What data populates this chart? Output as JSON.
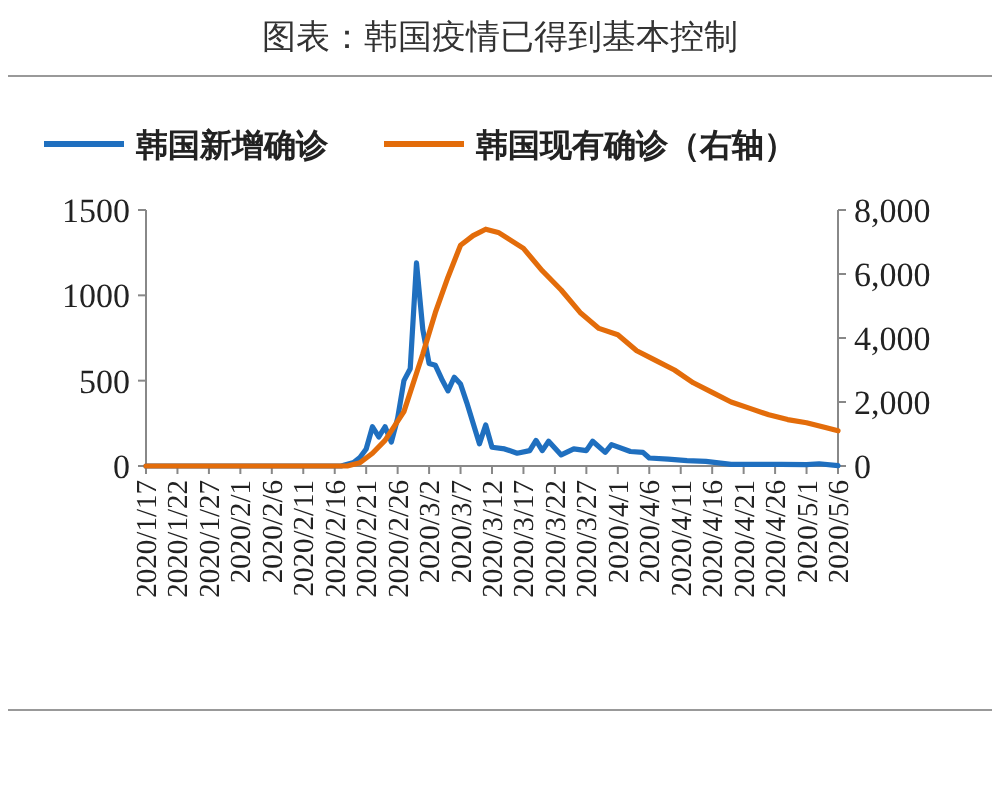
{
  "chart_data": {
    "type": "line",
    "title": "图表：韩国疫情已得到基本控制",
    "legend": "top",
    "xlim": [
      "2020-01-17",
      "2020-05-06"
    ],
    "xticks": [
      {
        "value": "2020-01-17",
        "label": "2020/1/17"
      },
      {
        "value": "2020-01-22",
        "label": "2020/1/22"
      },
      {
        "value": "2020-01-27",
        "label": "2020/1/27"
      },
      {
        "value": "2020-02-01",
        "label": "2020/2/1"
      },
      {
        "value": "2020-02-06",
        "label": "2020/2/6"
      },
      {
        "value": "2020-02-11",
        "label": "2020/2/11"
      },
      {
        "value": "2020-02-16",
        "label": "2020/2/16"
      },
      {
        "value": "2020-02-21",
        "label": "2020/2/21"
      },
      {
        "value": "2020-02-26",
        "label": "2020/2/26"
      },
      {
        "value": "2020-03-02",
        "label": "2020/3/2"
      },
      {
        "value": "2020-03-07",
        "label": "2020/3/7"
      },
      {
        "value": "2020-03-12",
        "label": "2020/3/12"
      },
      {
        "value": "2020-03-17",
        "label": "2020/3/17"
      },
      {
        "value": "2020-03-22",
        "label": "2020/3/22"
      },
      {
        "value": "2020-03-27",
        "label": "2020/3/27"
      },
      {
        "value": "2020-04-01",
        "label": "2020/4/1"
      },
      {
        "value": "2020-04-06",
        "label": "2020/4/6"
      },
      {
        "value": "2020-04-11",
        "label": "2020/4/11"
      },
      {
        "value": "2020-04-16",
        "label": "2020/4/16"
      },
      {
        "value": "2020-04-21",
        "label": "2020/4/21"
      },
      {
        "value": "2020-04-26",
        "label": "2020/4/26"
      },
      {
        "value": "2020-05-01",
        "label": "2020/5/1"
      },
      {
        "value": "2020-05-06",
        "label": "2020/5/6"
      }
    ],
    "ylim": [
      0,
      1500
    ],
    "yticks": [
      0,
      500,
      1000,
      1500
    ],
    "y2lim": [
      0,
      8000
    ],
    "y2ticks": [
      {
        "value": 0,
        "label": "0"
      },
      {
        "value": 2000,
        "label": "2,000"
      },
      {
        "value": 4000,
        "label": "4,000"
      },
      {
        "value": 6000,
        "label": "6,000"
      },
      {
        "value": 8000,
        "label": "8,000"
      }
    ],
    "series": [
      {
        "name": "韩国新增确诊",
        "color": "#1f6fbf",
        "x": [
          "2020-01-17",
          "2020-02-17",
          "2020-02-19",
          "2020-02-20",
          "2020-02-21",
          "2020-02-22",
          "2020-02-23",
          "2020-02-24",
          "2020-02-25",
          "2020-02-26",
          "2020-02-27",
          "2020-02-28",
          "2020-02-29",
          "2020-03-01",
          "2020-03-02",
          "2020-03-03",
          "2020-03-04",
          "2020-03-05",
          "2020-03-06",
          "2020-03-07",
          "2020-03-08",
          "2020-03-09",
          "2020-03-10",
          "2020-03-11",
          "2020-03-12",
          "2020-03-14",
          "2020-03-16",
          "2020-03-18",
          "2020-03-19",
          "2020-03-20",
          "2020-03-21",
          "2020-03-23",
          "2020-03-25",
          "2020-03-27",
          "2020-03-28",
          "2020-03-30",
          "2020-03-31",
          "2020-04-03",
          "2020-04-05",
          "2020-04-06",
          "2020-04-09",
          "2020-04-12",
          "2020-04-15",
          "2020-04-19",
          "2020-04-23",
          "2020-04-27",
          "2020-05-01",
          "2020-05-03",
          "2020-05-06"
        ],
        "values": [
          0,
          0,
          20,
          50,
          100,
          230,
          170,
          230,
          140,
          280,
          500,
          570,
          1190,
          800,
          600,
          590,
          510,
          440,
          520,
          480,
          370,
          250,
          130,
          240,
          110,
          100,
          75,
          90,
          150,
          90,
          145,
          65,
          100,
          90,
          145,
          80,
          125,
          85,
          80,
          47,
          40,
          32,
          27,
          10,
          10,
          10,
          8,
          13,
          2
        ]
      },
      {
        "name": "韩国现有确诊（右轴）",
        "color": "#e36c0a",
        "axis": "y2",
        "x": [
          "2020-01-17",
          "2020-02-18",
          "2020-02-20",
          "2020-02-22",
          "2020-02-24",
          "2020-02-27",
          "2020-03-01",
          "2020-03-03",
          "2020-03-05",
          "2020-03-07",
          "2020-03-09",
          "2020-03-11",
          "2020-03-13",
          "2020-03-15",
          "2020-03-17",
          "2020-03-20",
          "2020-03-23",
          "2020-03-26",
          "2020-03-29",
          "2020-04-01",
          "2020-04-04",
          "2020-04-07",
          "2020-04-10",
          "2020-04-13",
          "2020-04-16",
          "2020-04-19",
          "2020-04-22",
          "2020-04-25",
          "2020-04-28",
          "2020-05-01",
          "2020-05-04",
          "2020-05-06"
        ],
        "values": [
          0,
          0,
          100,
          400,
          800,
          1700,
          3500,
          4800,
          5900,
          6900,
          7200,
          7400,
          7300,
          7050,
          6800,
          6100,
          5500,
          4800,
          4300,
          4100,
          3600,
          3300,
          3000,
          2600,
          2300,
          2000,
          1800,
          1600,
          1450,
          1350,
          1200,
          1100
        ]
      }
    ]
  }
}
